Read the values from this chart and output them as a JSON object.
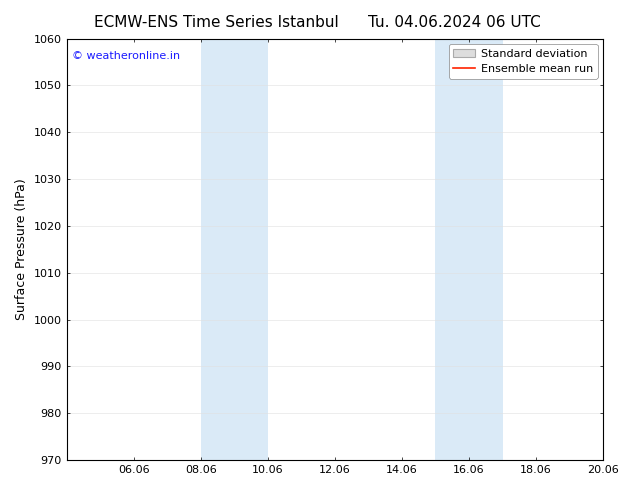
{
  "title_left": "ECMW-ENS Time Series Istanbul",
  "title_right": "Tu. 04.06.2024 06 UTC",
  "ylabel": "Surface Pressure (hPa)",
  "ylim": [
    970,
    1060
  ],
  "yticks": [
    970,
    980,
    990,
    1000,
    1010,
    1020,
    1030,
    1040,
    1050,
    1060
  ],
  "xlim": [
    0,
    16
  ],
  "xtick_labels": [
    "06.06",
    "08.06",
    "10.06",
    "12.06",
    "14.06",
    "16.06",
    "18.06",
    "20.06"
  ],
  "xtick_positions": [
    2,
    4,
    6,
    8,
    10,
    12,
    14,
    16
  ],
  "shaded_bands": [
    {
      "x_start": 4.0,
      "x_end": 6.0
    },
    {
      "x_start": 11.0,
      "x_end": 13.0
    }
  ],
  "shade_color": "#daeaf7",
  "watermark_text": "© weatheronline.in",
  "watermark_color": "#1a1aff",
  "watermark_fontsize": 8,
  "legend_std_label": "Standard deviation",
  "legend_mean_label": "Ensemble mean run",
  "legend_std_facecolor": "#dddddd",
  "legend_std_edgecolor": "#aaaaaa",
  "legend_mean_color": "#ff2200",
  "background_color": "#ffffff",
  "tick_color": "#000000",
  "spine_color": "#000000",
  "title_fontsize": 11,
  "label_fontsize": 9,
  "tick_fontsize": 8,
  "legend_fontsize": 8
}
